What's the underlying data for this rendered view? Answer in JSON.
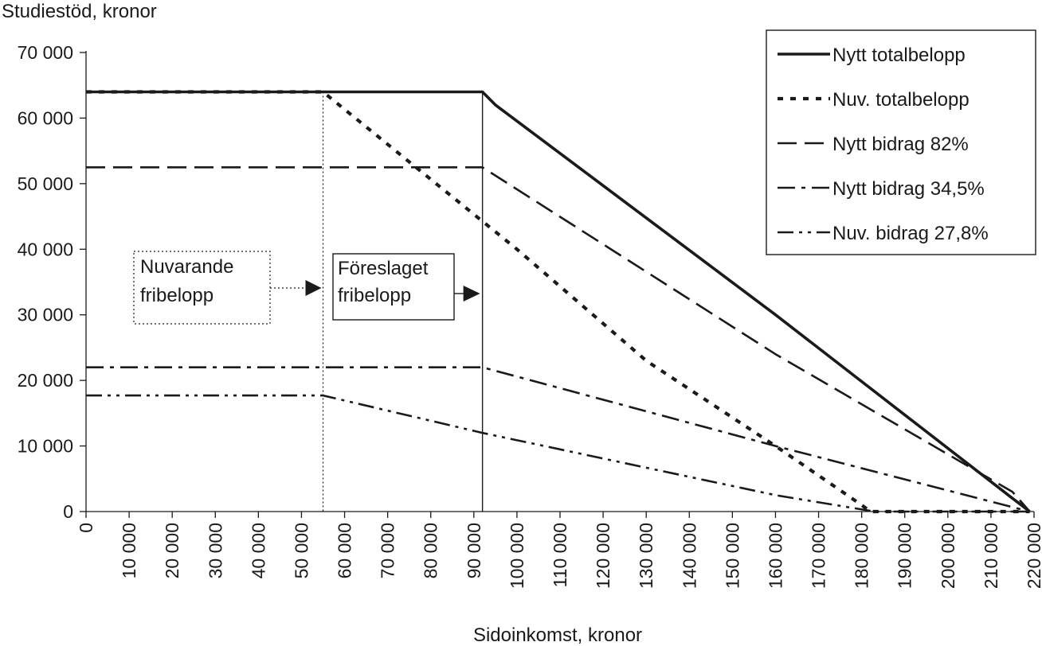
{
  "chart_data": {
    "type": "line",
    "ylabel": "Studiestöd, kronor",
    "xlabel": "Sidoinkomst, kronor",
    "xlim": [
      0,
      220000
    ],
    "ylim": [
      0,
      70000
    ],
    "y_ticks": [
      0,
      10000,
      20000,
      30000,
      40000,
      50000,
      60000,
      70000
    ],
    "y_tick_labels": [
      "0",
      "10 000",
      "20 000",
      "30 000",
      "40 000",
      "50 000",
      "60 000",
      "70 000"
    ],
    "x_ticks": [
      0,
      10000,
      20000,
      30000,
      40000,
      50000,
      60000,
      70000,
      80000,
      90000,
      100000,
      110000,
      120000,
      130000,
      140000,
      150000,
      160000,
      170000,
      180000,
      190000,
      200000,
      210000,
      220000
    ],
    "x_tick_labels": [
      "0",
      "10 000",
      "20 000",
      "30 000",
      "40 000",
      "50 000",
      "60 000",
      "70 000",
      "80 000",
      "90 000",
      "100 000",
      "110 000",
      "120 000",
      "130 000",
      "140 000",
      "150 000",
      "160 000",
      "170 000",
      "180 000",
      "190 000",
      "200 000",
      "210 000",
      "220 000"
    ],
    "grid": false,
    "legend_position": "top-right",
    "series": [
      {
        "name": "Nytt totalbelopp",
        "style": "solid",
        "x": [
          0,
          92000,
          95000,
          160000,
          216000,
          219000
        ],
        "y": [
          64000,
          64000,
          62000,
          30000,
          1500,
          0
        ]
      },
      {
        "name": "Nuv. totalbelopp",
        "style": "dotted",
        "x": [
          0,
          55000,
          70000,
          100000,
          130000,
          160000,
          180000,
          182000,
          219000
        ],
        "y": [
          64000,
          64000,
          56000,
          40000,
          23000,
          10000,
          1000,
          0,
          0
        ]
      },
      {
        "name": "Nytt bidrag 82%",
        "style": "long-dash",
        "x": [
          0,
          92000,
          160000,
          215000,
          219000
        ],
        "y": [
          52500,
          52500,
          24000,
          3000,
          0
        ]
      },
      {
        "name": "Nytt bidrag 34,5%",
        "style": "dash-dot",
        "x": [
          0,
          92000,
          160000,
          219000
        ],
        "y": [
          22000,
          22000,
          10000,
          0
        ]
      },
      {
        "name": "Nuv. bidrag 27,8%",
        "style": "dash-dot-dot",
        "x": [
          0,
          55000,
          92000,
          160000,
          183000,
          219000
        ],
        "y": [
          17700,
          17700,
          12000,
          2500,
          0,
          0
        ]
      }
    ],
    "annotations": [
      {
        "label_lines": [
          "Nuvarande",
          "fribelopp"
        ],
        "x": 55000,
        "line": "dotted"
      },
      {
        "label_lines": [
          "Föreslaget",
          "fribelopp"
        ],
        "x": 92000,
        "line": "solid"
      }
    ]
  },
  "colors": {
    "ink": "#1a1a1a",
    "background": "#ffffff"
  }
}
